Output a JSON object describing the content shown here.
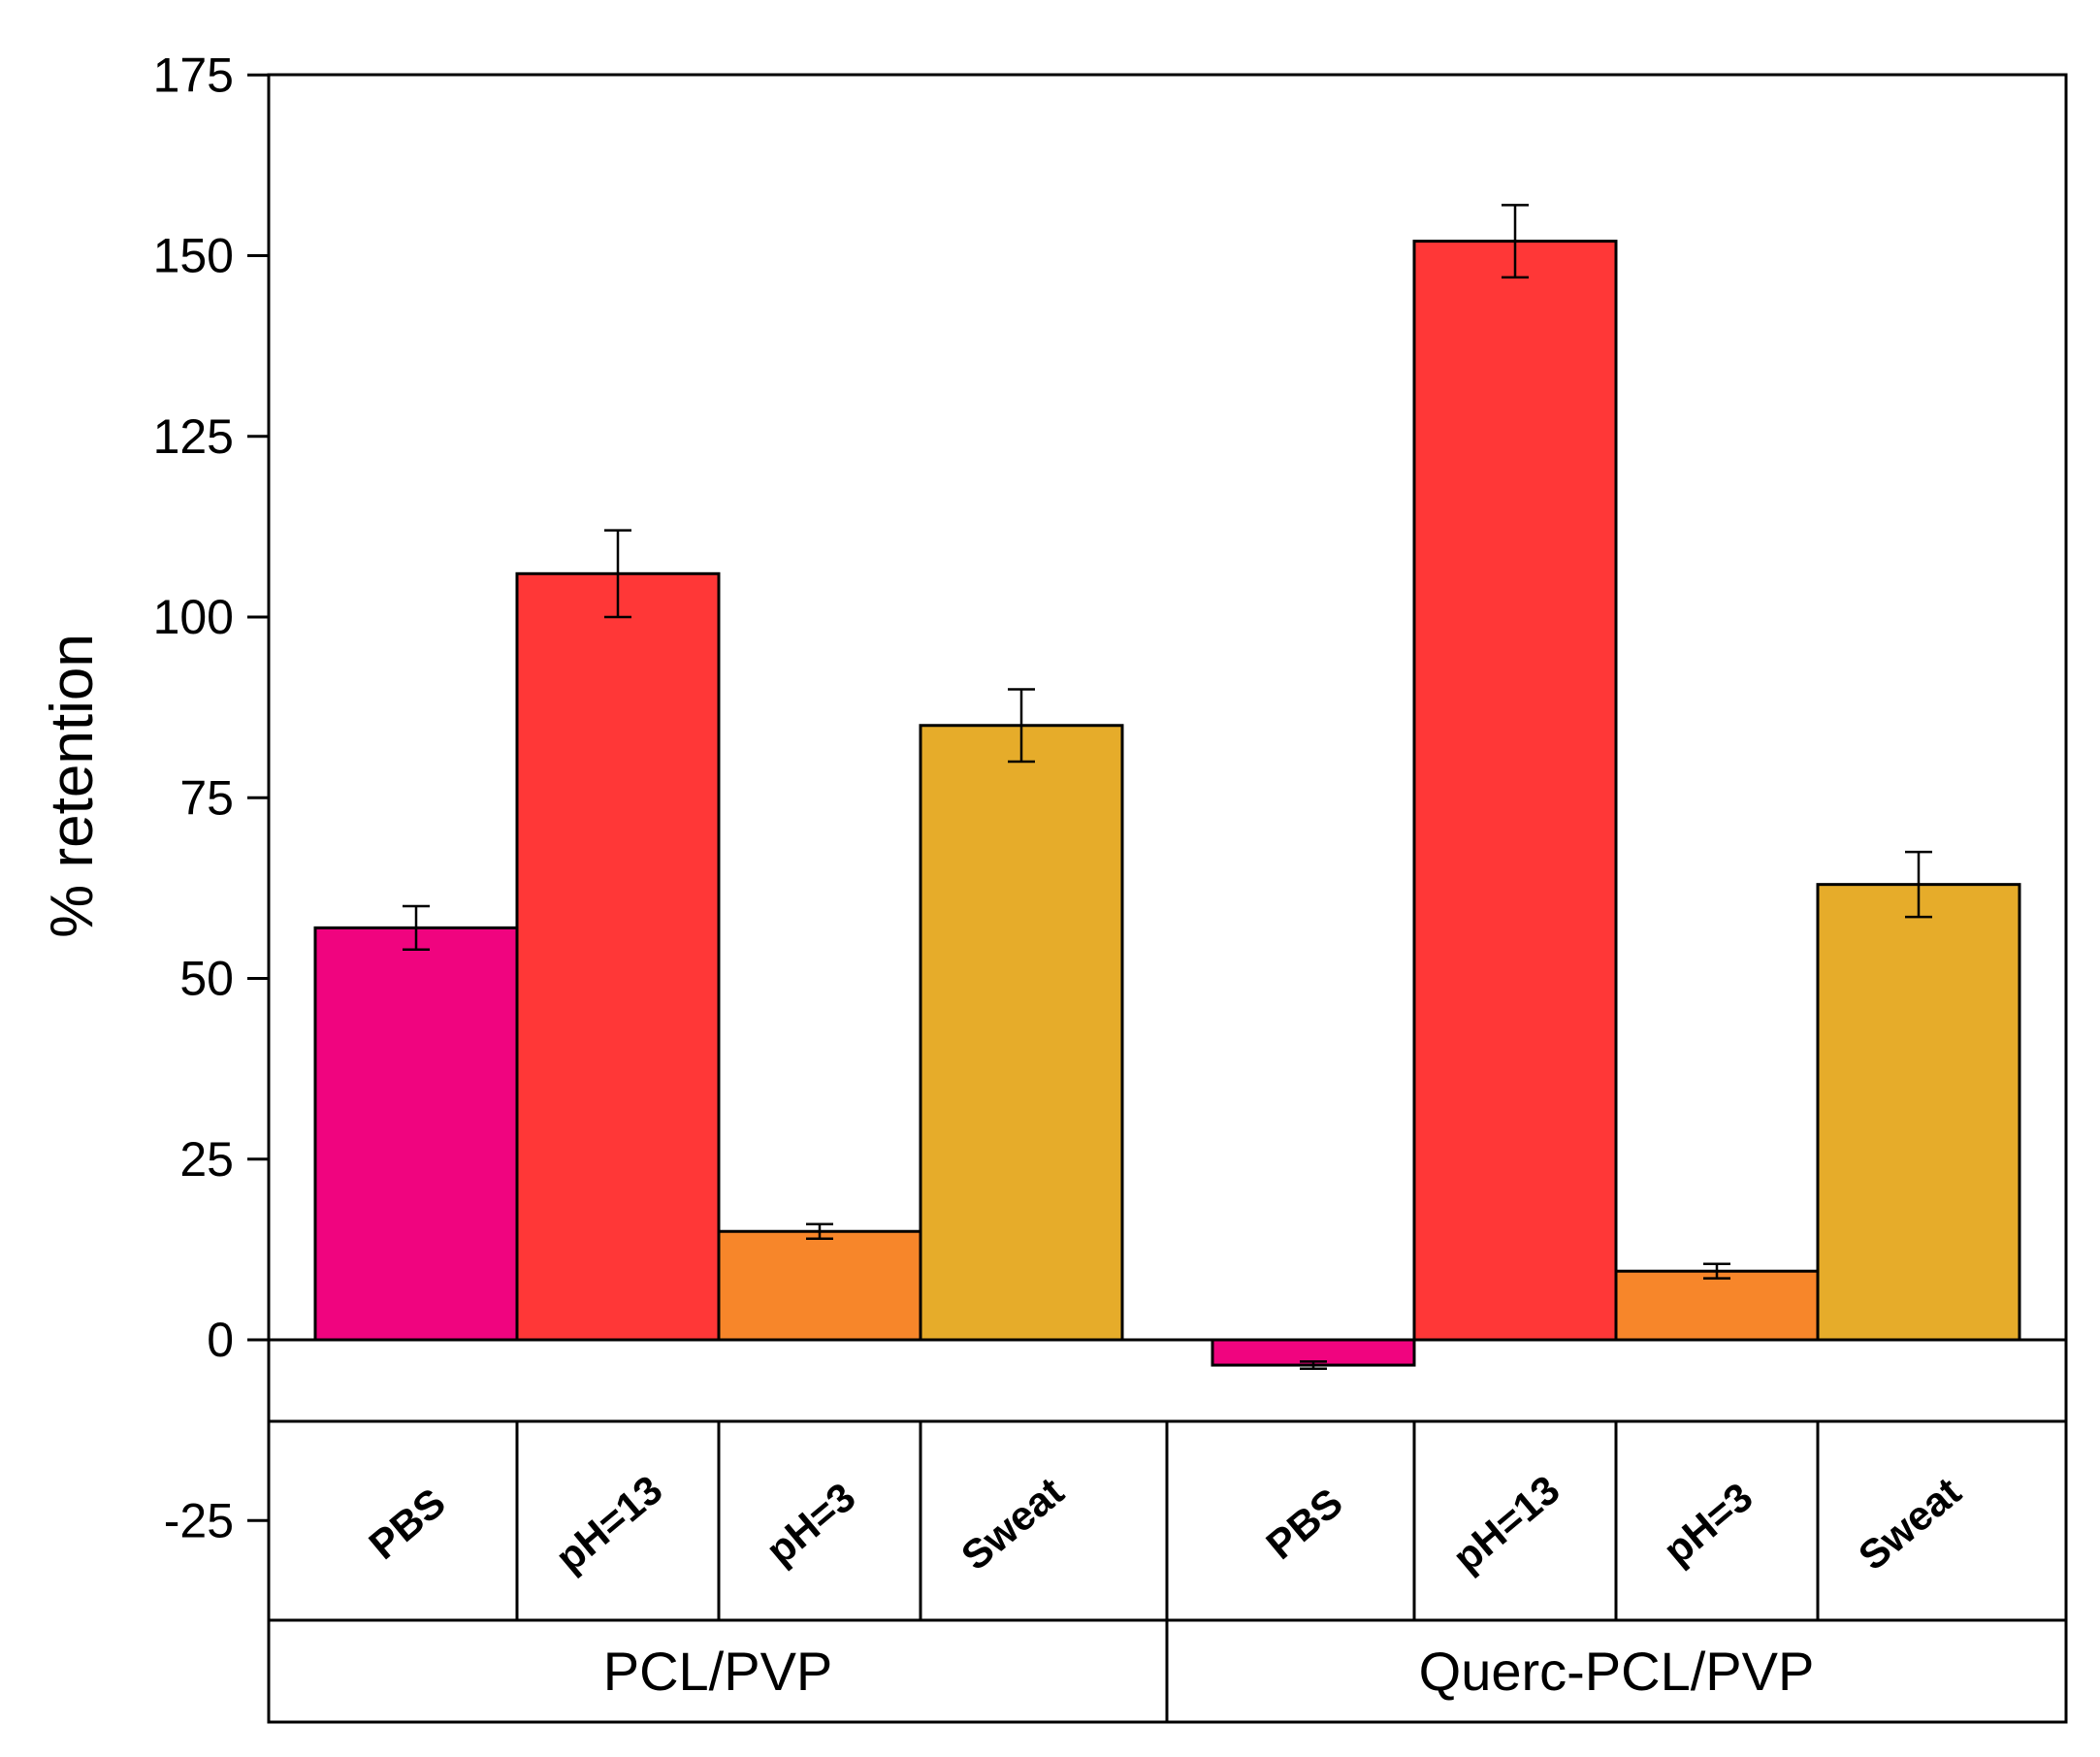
{
  "chart_data": {
    "type": "bar",
    "title": "",
    "xlabel": "",
    "ylabel": "% retention",
    "ylim": [
      -37.5,
      175
    ],
    "yticks": [
      175,
      150,
      125,
      100,
      75,
      50,
      25,
      0,
      -25
    ],
    "grid": false,
    "legend": "none",
    "groups": [
      {
        "name": "PCL/PVP",
        "bars": [
          {
            "category": "PBS",
            "value": 57,
            "error": 3,
            "color": "#F0047F"
          },
          {
            "category": "pH=13",
            "value": 106,
            "error": 6,
            "color": "#FF3737"
          },
          {
            "category": "pH=3",
            "value": 15,
            "error": 1,
            "color": "#F7862A"
          },
          {
            "category": "Sweat",
            "value": 85,
            "error": 5,
            "color": "#E6AC2A"
          }
        ]
      },
      {
        "name": "Querc-PCL/PVP",
        "bars": [
          {
            "category": "PBS",
            "value": -3.5,
            "error": 0.5,
            "color": "#F0047F"
          },
          {
            "category": "pH=13",
            "value": 152,
            "error": 5,
            "color": "#FF3737"
          },
          {
            "category": "pH=3",
            "value": 9.5,
            "error": 1,
            "color": "#F7862A"
          },
          {
            "category": "Sweat",
            "value": 63,
            "error": 4.5,
            "color": "#E6AC2A"
          }
        ]
      }
    ]
  }
}
